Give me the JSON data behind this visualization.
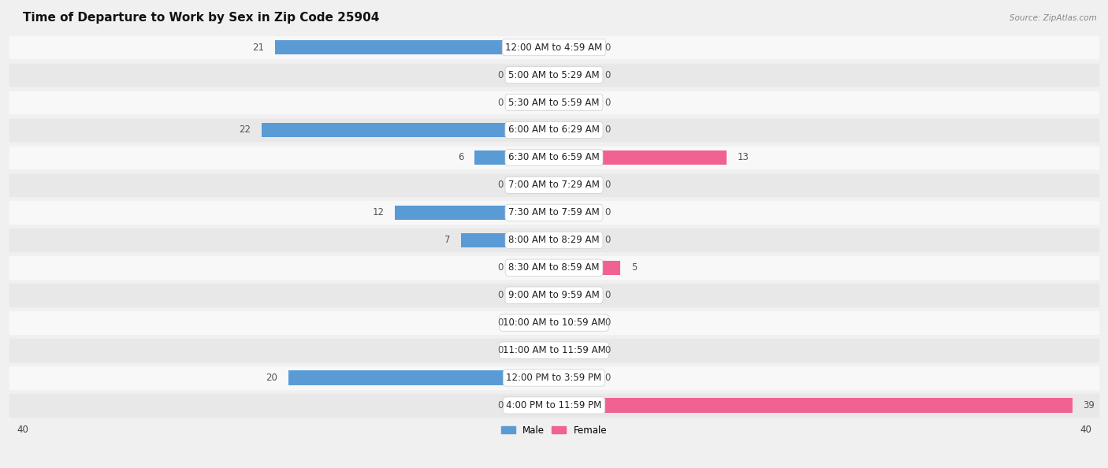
{
  "title": "Time of Departure to Work by Sex in Zip Code 25904",
  "source": "Source: ZipAtlas.com",
  "categories": [
    "12:00 AM to 4:59 AM",
    "5:00 AM to 5:29 AM",
    "5:30 AM to 5:59 AM",
    "6:00 AM to 6:29 AM",
    "6:30 AM to 6:59 AM",
    "7:00 AM to 7:29 AM",
    "7:30 AM to 7:59 AM",
    "8:00 AM to 8:29 AM",
    "8:30 AM to 8:59 AM",
    "9:00 AM to 9:59 AM",
    "10:00 AM to 10:59 AM",
    "11:00 AM to 11:59 AM",
    "12:00 PM to 3:59 PM",
    "4:00 PM to 11:59 PM"
  ],
  "male_values": [
    21,
    0,
    0,
    22,
    6,
    0,
    12,
    7,
    0,
    0,
    0,
    0,
    20,
    0
  ],
  "female_values": [
    0,
    0,
    0,
    0,
    13,
    0,
    0,
    0,
    5,
    0,
    0,
    0,
    0,
    39
  ],
  "male_color_strong": "#5b9bd5",
  "male_color_light": "#a9c8e8",
  "female_color_strong": "#f06292",
  "female_color_light": "#f4a7bb",
  "bar_label_color": "#555555",
  "axis_label_value": 40,
  "background_color": "#f0f0f0",
  "row_bg_light": "#f8f8f8",
  "row_bg_dark": "#e8e8e8",
  "title_fontsize": 11,
  "label_fontsize": 8.5,
  "value_fontsize": 8.5,
  "min_stub": 3
}
